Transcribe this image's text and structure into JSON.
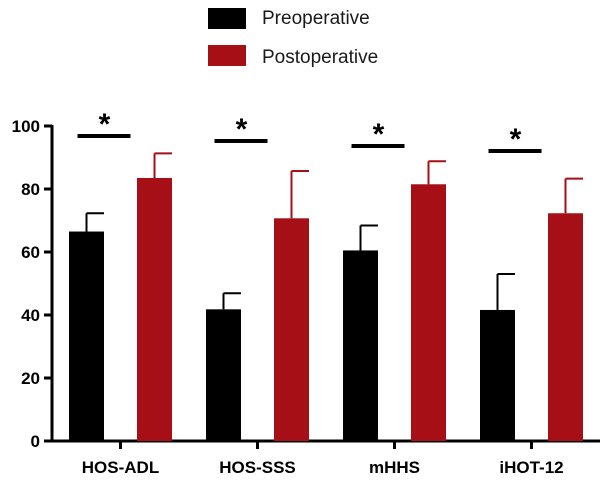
{
  "chart_data": {
    "type": "bar",
    "categories": [
      "HOS-ADL",
      "HOS-SSS",
      "mHHS",
      "iHOT-12"
    ],
    "series": [
      {
        "name": "Preoperative",
        "color": "#000000",
        "values": [
          66.5,
          41.8,
          60.5,
          41.6
        ],
        "errors": [
          5.8,
          5.1,
          7.9,
          11.4
        ]
      },
      {
        "name": "Postoperative",
        "color": "#a50f15",
        "values": [
          83.5,
          70.7,
          81.5,
          72.3
        ],
        "errors": [
          7.8,
          15.0,
          7.3,
          11.0
        ]
      }
    ],
    "significance": [
      "*",
      "*",
      "*",
      "*"
    ],
    "yticks": [
      "0",
      "20",
      "40",
      "60",
      "80",
      "100"
    ],
    "ylim": [
      0,
      100
    ],
    "title": "",
    "xlabel": "",
    "ylabel": "",
    "legend": "top-center"
  }
}
